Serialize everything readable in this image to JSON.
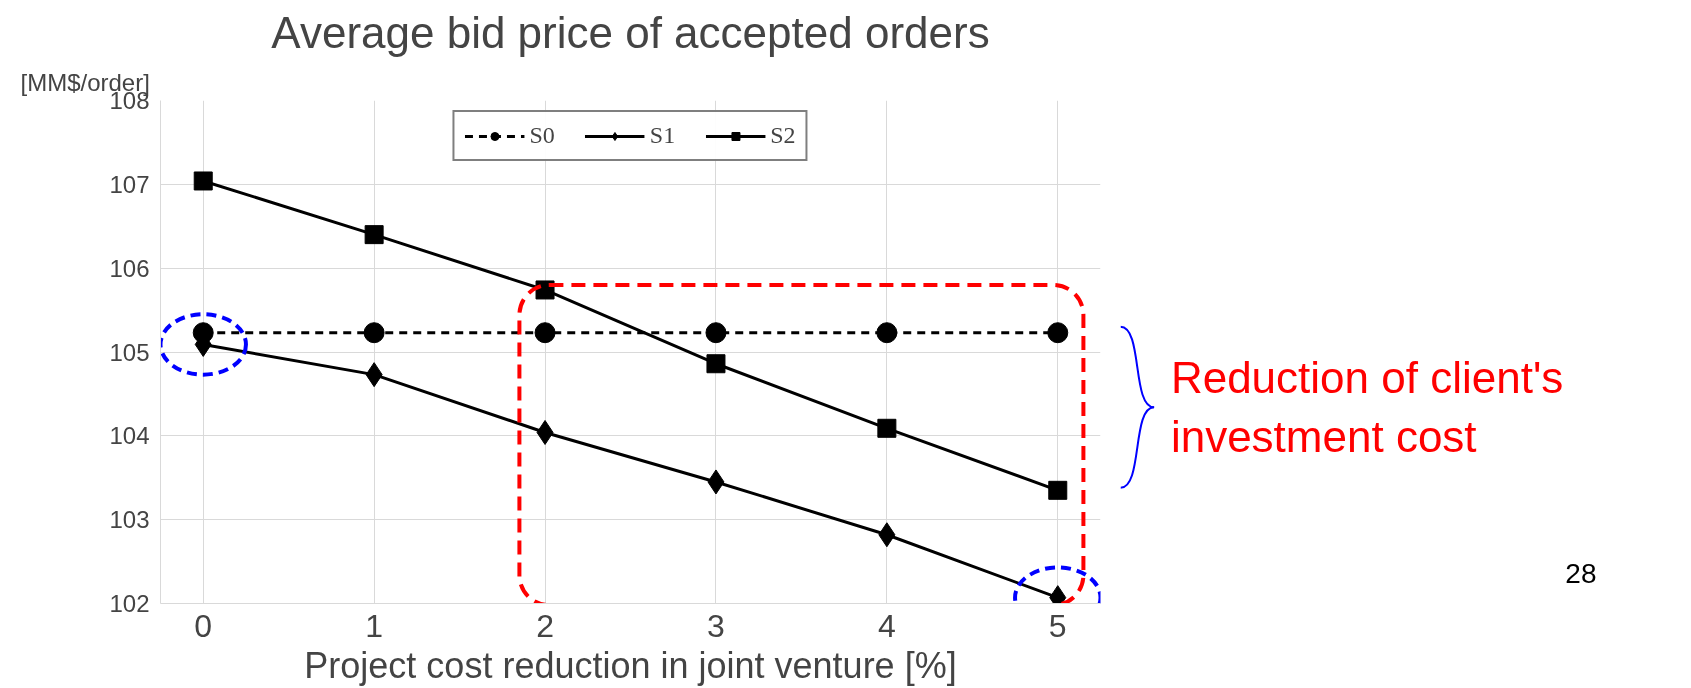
{
  "chart_data": {
    "type": "line",
    "title": "Average bid price of accepted orders",
    "xlabel": "Project cost reduction in joint venture [%]",
    "ylabel": "[MM$/order]",
    "categories": [
      "0",
      "1",
      "2",
      "3",
      "4",
      "5"
    ],
    "ylim": [
      102,
      108
    ],
    "yticks": [
      102,
      103,
      104,
      105,
      106,
      107,
      108
    ],
    "grid": true,
    "legend": "top",
    "series": [
      {
        "name": "S0",
        "color": "#000000",
        "marker": "circle",
        "line_style": "dashed",
        "values": [
          105.23,
          105.23,
          105.23,
          105.23,
          105.23,
          105.23
        ]
      },
      {
        "name": "S1",
        "color": "#000000",
        "marker": "diamond",
        "line_style": "solid",
        "values": [
          105.09,
          104.73,
          104.04,
          103.45,
          102.82,
          102.07
        ]
      },
      {
        "name": "S2",
        "color": "#000000",
        "marker": "square",
        "line_style": "solid",
        "values": [
          107.04,
          106.4,
          105.74,
          104.86,
          104.09,
          103.35
        ]
      }
    ],
    "annotations": [
      "Reduction of client's investment cost",
      "28"
    ]
  }
}
